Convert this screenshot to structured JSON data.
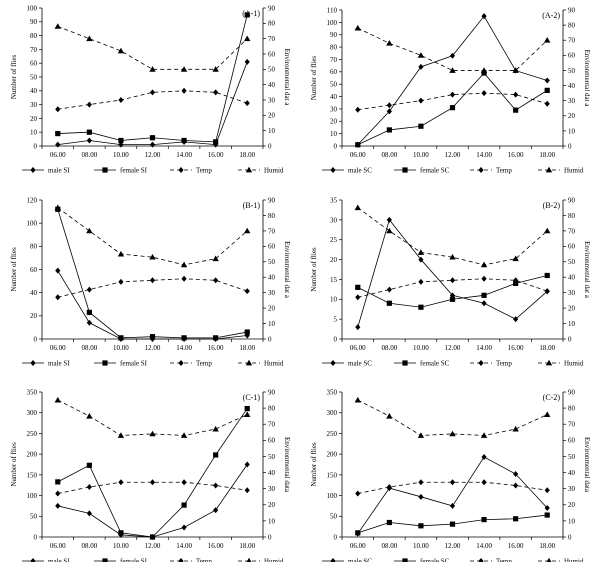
{
  "chart_data": [
    {
      "type": "line",
      "panel": "A-1",
      "label": "(A-1)",
      "categories": [
        "06.00",
        "08.00",
        "10.00",
        "12.00",
        "14.00",
        "16.00",
        "18.00"
      ],
      "ylabel": "Number of flies",
      "y2label": "Environmental dat a",
      "ylim": [
        0,
        100
      ],
      "yticks": [
        0,
        10,
        20,
        30,
        40,
        50,
        60,
        70,
        80,
        90,
        100
      ],
      "y2lim": [
        0,
        90
      ],
      "y2ticks": [
        0,
        10,
        20,
        30,
        40,
        50,
        60,
        70,
        80,
        90
      ],
      "series": [
        {
          "name": "male SI",
          "axis": "left",
          "marker": "diamond",
          "style": "solid",
          "values": [
            1,
            4,
            1,
            1,
            3,
            1,
            61
          ]
        },
        {
          "name": "female SI",
          "axis": "left",
          "marker": "square",
          "style": "solid",
          "values": [
            9,
            10,
            4,
            6,
            4,
            3,
            95
          ]
        },
        {
          "name": "Temp",
          "axis": "right",
          "marker": "diamond",
          "style": "dashed",
          "values": [
            24,
            27,
            30,
            35,
            36,
            35,
            28
          ]
        },
        {
          "name": "Humid",
          "axis": "right",
          "marker": "triangle",
          "style": "dashed",
          "values": [
            78,
            70,
            62,
            50,
            50,
            50,
            70
          ]
        }
      ]
    },
    {
      "type": "line",
      "panel": "A-2",
      "label": "(A-2)",
      "categories": [
        "06.00",
        "08.00",
        "10.00",
        "12.00",
        "14.00",
        "16.00",
        "18.00"
      ],
      "ylabel": "Number of flies",
      "y2label": "Environmental dat a",
      "ylim": [
        0,
        110
      ],
      "yticks": [
        0,
        10,
        20,
        30,
        40,
        50,
        60,
        70,
        80,
        90,
        100,
        110
      ],
      "y2lim": [
        0,
        90
      ],
      "y2ticks": [
        0,
        10,
        20,
        30,
        40,
        50,
        60,
        70,
        80,
        90
      ],
      "series": [
        {
          "name": "male SC",
          "axis": "left",
          "marker": "diamond",
          "style": "solid",
          "values": [
            1,
            28,
            64,
            73,
            105,
            61,
            53
          ]
        },
        {
          "name": "female SC",
          "axis": "left",
          "marker": "square",
          "style": "solid",
          "values": [
            1,
            13,
            16,
            31,
            59,
            29,
            45
          ]
        },
        {
          "name": "Temp",
          "axis": "right",
          "marker": "diamond",
          "style": "dashed",
          "values": [
            24,
            27,
            30,
            34,
            35,
            34,
            28
          ]
        },
        {
          "name": "Humid",
          "axis": "right",
          "marker": "triangle",
          "style": "dashed",
          "values": [
            78,
            68,
            60,
            50,
            50,
            50,
            70
          ]
        }
      ]
    },
    {
      "type": "line",
      "panel": "B-1",
      "label": "(B-1)",
      "categories": [
        "06.00",
        "08.00",
        "10.00",
        "12.00",
        "14.00",
        "16.00",
        "18.00"
      ],
      "ylabel": "Number of flies",
      "y2label": "Environmental dat a",
      "ylim": [
        0,
        120
      ],
      "yticks": [
        0,
        20,
        40,
        60,
        80,
        100,
        120
      ],
      "y2lim": [
        0,
        90
      ],
      "y2ticks": [
        0,
        10,
        20,
        30,
        40,
        50,
        60,
        70,
        80,
        90
      ],
      "series": [
        {
          "name": "male SI",
          "axis": "left",
          "marker": "diamond",
          "style": "solid",
          "values": [
            59,
            14,
            0,
            0,
            0,
            0,
            3
          ]
        },
        {
          "name": "female SI",
          "axis": "left",
          "marker": "square",
          "style": "solid",
          "values": [
            112,
            23,
            1,
            2,
            1,
            1,
            6
          ]
        },
        {
          "name": "Temp",
          "axis": "right",
          "marker": "diamond",
          "style": "dashed",
          "values": [
            27,
            32,
            37,
            38,
            39,
            38,
            31
          ]
        },
        {
          "name": "Humid",
          "axis": "right",
          "marker": "triangle",
          "style": "dashed",
          "values": [
            85,
            70,
            55,
            53,
            48,
            52,
            70
          ]
        }
      ]
    },
    {
      "type": "line",
      "panel": "B-2",
      "label": "(B-2)",
      "categories": [
        "06.00",
        "08.00",
        "10.00",
        "12.00",
        "14.00",
        "16.00",
        "18.00"
      ],
      "ylabel": "Number of flies",
      "y2label": "Environmental dat a",
      "ylim": [
        0,
        35
      ],
      "yticks": [
        0,
        5,
        10,
        15,
        20,
        25,
        30,
        35
      ],
      "y2lim": [
        0,
        90
      ],
      "y2ticks": [
        0,
        10,
        20,
        30,
        40,
        50,
        60,
        70,
        80,
        90
      ],
      "series": [
        {
          "name": "male SC",
          "axis": "left",
          "marker": "diamond",
          "style": "solid",
          "values": [
            3,
            30,
            20,
            11,
            9,
            5,
            12
          ]
        },
        {
          "name": "female SC",
          "axis": "left",
          "marker": "square",
          "style": "solid",
          "values": [
            13,
            9,
            8,
            10,
            11,
            14,
            16
          ]
        },
        {
          "name": "Temp",
          "axis": "right",
          "marker": "diamond",
          "style": "dashed",
          "values": [
            27,
            32,
            37,
            38,
            39,
            38,
            31
          ]
        },
        {
          "name": "Humid",
          "axis": "right",
          "marker": "triangle",
          "style": "dashed",
          "values": [
            85,
            70,
            56,
            53,
            48,
            52,
            70
          ]
        }
      ]
    },
    {
      "type": "line",
      "panel": "C-1",
      "label": "(C-1)",
      "categories": [
        "06.00",
        "08.00",
        "10.00",
        "12.00",
        "14.00",
        "16.00",
        "18.00"
      ],
      "ylabel": "Number of flies",
      "y2label": "Environmental data",
      "ylim": [
        0,
        350
      ],
      "yticks": [
        0,
        50,
        100,
        150,
        200,
        250,
        300,
        350
      ],
      "y2lim": [
        0,
        90
      ],
      "y2ticks": [
        0,
        10,
        20,
        30,
        40,
        50,
        60,
        70,
        80,
        90
      ],
      "series": [
        {
          "name": "male SI",
          "axis": "left",
          "marker": "diamond",
          "style": "solid",
          "values": [
            75,
            57,
            5,
            0,
            23,
            65,
            175
          ]
        },
        {
          "name": "female SI",
          "axis": "left",
          "marker": "square",
          "style": "solid",
          "values": [
            133,
            173,
            10,
            0,
            77,
            198,
            310
          ]
        },
        {
          "name": "Temp",
          "axis": "right",
          "marker": "diamond",
          "style": "dashed",
          "values": [
            27,
            31,
            34,
            34,
            34,
            32,
            29
          ]
        },
        {
          "name": "Humid",
          "axis": "right",
          "marker": "triangle",
          "style": "dashed",
          "values": [
            85,
            75,
            63,
            64,
            63,
            67,
            76
          ]
        }
      ]
    },
    {
      "type": "line",
      "panel": "C-2",
      "label": "(C-2)",
      "categories": [
        "06.00",
        "08.00",
        "10.00",
        "12.00",
        "14.00",
        "16.00",
        "18.00"
      ],
      "ylabel": "Number of flies",
      "y2label": "Environmental data",
      "ylim": [
        0,
        350
      ],
      "yticks": [
        0,
        50,
        100,
        150,
        200,
        250,
        300,
        350
      ],
      "y2lim": [
        0,
        90
      ],
      "y2ticks": [
        0,
        10,
        20,
        30,
        40,
        50,
        60,
        70,
        80,
        90
      ],
      "series": [
        {
          "name": "male SC",
          "axis": "left",
          "marker": "diamond",
          "style": "solid",
          "values": [
            8,
            118,
            97,
            75,
            193,
            152,
            70
          ]
        },
        {
          "name": "female SC",
          "axis": "left",
          "marker": "square",
          "style": "solid",
          "values": [
            10,
            35,
            27,
            31,
            42,
            44,
            53
          ]
        },
        {
          "name": "Temp",
          "axis": "right",
          "marker": "diamond",
          "style": "dashed",
          "values": [
            27,
            31,
            34,
            34,
            34,
            32,
            29
          ]
        },
        {
          "name": "Humid",
          "axis": "right",
          "marker": "triangle",
          "style": "dashed",
          "values": [
            85,
            75,
            63,
            64,
            63,
            67,
            76
          ]
        }
      ]
    }
  ]
}
